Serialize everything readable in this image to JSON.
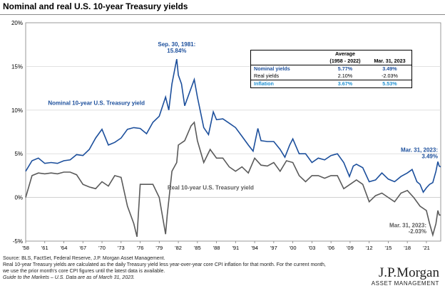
{
  "title": "Nominal and real U.S. 10-year Treasury yields",
  "colors": {
    "nominal": "#1c4f9c",
    "real": "#5a5a5a",
    "inflation": "#1f8fd0",
    "grid": "#d9d9d9",
    "zero": "#c0c0c0"
  },
  "stats_table": {
    "header_avg_line1": "Average",
    "header_avg_line2": "(1958 - 2022)",
    "header_last": "Mar. 31, 2023",
    "rows": [
      {
        "label": "Nominal yields",
        "avg": "5.77%",
        "last": "3.49%",
        "color": "#1c4f9c"
      },
      {
        "label": "Real yields",
        "avg": "2.10%",
        "last": "-2.03%",
        "color": "#000000"
      },
      {
        "label": "Inflation",
        "avg": "3.67%",
        "last": "5.53%",
        "color": "#1f8fd0"
      }
    ]
  },
  "annotations": {
    "peak_line1": "Sep. 30, 1981:",
    "peak_line2": "15.84%",
    "nominal_series_label": "Nominal 10-year U.S. Treasury yield",
    "real_series_label": "Real 10-year U.S. Treasury yield",
    "nominal_end_line1": "Mar. 31, 2023:",
    "nominal_end_line2": "3.49%",
    "real_end_line1": "Mar. 31, 2023:",
    "real_end_line2": "-2.03%"
  },
  "footer": {
    "line1": "Source: BLS, FactSet, Federal Reserve, J.P. Morgan Asset Management.",
    "line2": "Real 10-year Treasury yields are calculated as the daily Treasury yield less year-over-year core CPI inflation for that month. For the current month,",
    "line3": "we use the prior month's core CPI figures until the latest data is available.",
    "line4": "Guide to the Markets – U.S. Data are as of March 31, 2023."
  },
  "logo": {
    "brand": "J.P.Morgan",
    "sub": "ASSET MANAGEMENT"
  },
  "chart_data": {
    "type": "line",
    "title": "Nominal and real U.S. 10-year Treasury yields",
    "xlabel": "",
    "ylabel": "",
    "xlim": [
      1958,
      2023.25
    ],
    "ylim": [
      -5,
      20
    ],
    "y_ticks": [
      -5,
      0,
      5,
      10,
      15,
      20
    ],
    "y_tick_labels": [
      "-5%",
      "0%",
      "5%",
      "10%",
      "15%",
      "20%"
    ],
    "x_ticks": [
      1958,
      1961,
      1964,
      1967,
      1970,
      1973,
      1976,
      1979,
      1982,
      1985,
      1988,
      1991,
      1994,
      1997,
      2000,
      2003,
      2006,
      2009,
      2012,
      2015,
      2018,
      2021
    ],
    "x_tick_labels": [
      "'58",
      "'61",
      "'64",
      "'67",
      "'70",
      "'73",
      "'76",
      "'79",
      "'82",
      "'85",
      "'88",
      "'91",
      "'94",
      "'97",
      "'00",
      "'03",
      "'06",
      "'09",
      "'12",
      "'15",
      "'18",
      "'21"
    ],
    "grid": "horizontal",
    "series": [
      {
        "name": "Nominal 10-year U.S. Treasury yield",
        "points": [
          [
            1958.0,
            3.0
          ],
          [
            1959.0,
            4.2
          ],
          [
            1960.0,
            4.5
          ],
          [
            1961.0,
            3.9
          ],
          [
            1962.0,
            4.0
          ],
          [
            1963.0,
            3.9
          ],
          [
            1964.0,
            4.2
          ],
          [
            1965.0,
            4.3
          ],
          [
            1966.0,
            4.9
          ],
          [
            1967.0,
            4.8
          ],
          [
            1968.0,
            5.5
          ],
          [
            1969.0,
            6.8
          ],
          [
            1970.0,
            7.8
          ],
          [
            1971.0,
            6.0
          ],
          [
            1972.0,
            6.3
          ],
          [
            1973.0,
            6.8
          ],
          [
            1974.0,
            7.8
          ],
          [
            1975.0,
            8.0
          ],
          [
            1976.0,
            7.9
          ],
          [
            1977.0,
            7.3
          ],
          [
            1978.0,
            8.6
          ],
          [
            1979.0,
            9.3
          ],
          [
            1980.0,
            11.5
          ],
          [
            1980.5,
            10.0
          ],
          [
            1981.0,
            13.0
          ],
          [
            1981.75,
            15.84
          ],
          [
            1982.0,
            14.0
          ],
          [
            1982.5,
            13.0
          ],
          [
            1983.0,
            10.5
          ],
          [
            1984.0,
            12.5
          ],
          [
            1984.5,
            13.5
          ],
          [
            1985.0,
            11.5
          ],
          [
            1986.0,
            8.0
          ],
          [
            1986.75,
            7.2
          ],
          [
            1987.5,
            9.8
          ],
          [
            1988.0,
            8.9
          ],
          [
            1989.0,
            9.0
          ],
          [
            1990.0,
            8.5
          ],
          [
            1991.0,
            8.0
          ],
          [
            1992.0,
            7.0
          ],
          [
            1993.0,
            6.0
          ],
          [
            1993.75,
            5.3
          ],
          [
            1994.5,
            7.9
          ],
          [
            1995.0,
            6.5
          ],
          [
            1996.0,
            6.4
          ],
          [
            1997.0,
            6.4
          ],
          [
            1998.0,
            5.5
          ],
          [
            1998.75,
            4.6
          ],
          [
            1999.5,
            6.0
          ],
          [
            2000.0,
            6.7
          ],
          [
            2001.0,
            5.0
          ],
          [
            2002.0,
            5.0
          ],
          [
            2003.0,
            4.0
          ],
          [
            2004.0,
            4.5
          ],
          [
            2005.0,
            4.3
          ],
          [
            2006.0,
            4.8
          ],
          [
            2007.0,
            5.0
          ],
          [
            2008.0,
            4.0
          ],
          [
            2008.9,
            2.4
          ],
          [
            2009.5,
            3.6
          ],
          [
            2010.0,
            3.8
          ],
          [
            2011.0,
            3.4
          ],
          [
            2012.0,
            1.8
          ],
          [
            2013.0,
            2.0
          ],
          [
            2014.0,
            2.8
          ],
          [
            2015.0,
            2.1
          ],
          [
            2016.0,
            1.8
          ],
          [
            2017.0,
            2.4
          ],
          [
            2018.0,
            2.8
          ],
          [
            2018.75,
            3.2
          ],
          [
            2019.5,
            1.8
          ],
          [
            2020.0,
            1.5
          ],
          [
            2020.5,
            0.6
          ],
          [
            2021.0,
            1.1
          ],
          [
            2021.5,
            1.5
          ],
          [
            2022.0,
            1.7
          ],
          [
            2022.5,
            3.0
          ],
          [
            2022.8,
            4.1
          ],
          [
            2023.0,
            3.6
          ],
          [
            2023.25,
            3.49
          ]
        ]
      },
      {
        "name": "Real 10-year U.S. Treasury yield",
        "points": [
          [
            1958.0,
            0.0
          ],
          [
            1959.0,
            2.5
          ],
          [
            1960.0,
            2.8
          ],
          [
            1961.0,
            2.7
          ],
          [
            1962.0,
            2.8
          ],
          [
            1963.0,
            2.7
          ],
          [
            1964.0,
            2.9
          ],
          [
            1965.0,
            2.9
          ],
          [
            1966.0,
            2.6
          ],
          [
            1967.0,
            1.5
          ],
          [
            1968.0,
            1.2
          ],
          [
            1969.0,
            1.0
          ],
          [
            1970.0,
            1.8
          ],
          [
            1971.0,
            1.3
          ],
          [
            1972.0,
            2.5
          ],
          [
            1973.0,
            2.3
          ],
          [
            1974.0,
            -1.0
          ],
          [
            1975.0,
            -3.0
          ],
          [
            1975.5,
            -4.5
          ],
          [
            1976.0,
            1.5
          ],
          [
            1977.0,
            1.5
          ],
          [
            1978.0,
            1.5
          ],
          [
            1979.0,
            0.0
          ],
          [
            1980.0,
            -4.2
          ],
          [
            1980.25,
            -2.0
          ],
          [
            1981.0,
            3.0
          ],
          [
            1981.75,
            4.0
          ],
          [
            1982.0,
            6.0
          ],
          [
            1983.0,
            6.5
          ],
          [
            1984.0,
            8.2
          ],
          [
            1984.5,
            8.6
          ],
          [
            1985.0,
            6.5
          ],
          [
            1986.0,
            4.0
          ],
          [
            1987.0,
            5.5
          ],
          [
            1988.0,
            4.5
          ],
          [
            1989.0,
            4.5
          ],
          [
            1990.0,
            3.5
          ],
          [
            1991.0,
            3.0
          ],
          [
            1992.0,
            3.5
          ],
          [
            1993.0,
            2.8
          ],
          [
            1994.0,
            4.5
          ],
          [
            1995.0,
            3.7
          ],
          [
            1996.0,
            3.6
          ],
          [
            1997.0,
            4.0
          ],
          [
            1998.0,
            3.0
          ],
          [
            1999.0,
            4.2
          ],
          [
            2000.0,
            4.0
          ],
          [
            2001.0,
            2.5
          ],
          [
            2002.0,
            1.8
          ],
          [
            2003.0,
            2.5
          ],
          [
            2004.0,
            2.5
          ],
          [
            2005.0,
            2.2
          ],
          [
            2006.0,
            2.5
          ],
          [
            2007.0,
            2.5
          ],
          [
            2008.0,
            1.0
          ],
          [
            2009.0,
            1.5
          ],
          [
            2010.0,
            2.0
          ],
          [
            2011.0,
            1.5
          ],
          [
            2012.0,
            -0.5
          ],
          [
            2013.0,
            0.2
          ],
          [
            2014.0,
            0.5
          ],
          [
            2015.0,
            0.0
          ],
          [
            2016.0,
            -0.5
          ],
          [
            2017.0,
            0.5
          ],
          [
            2018.0,
            0.8
          ],
          [
            2019.0,
            0.0
          ],
          [
            2020.0,
            -1.0
          ],
          [
            2021.0,
            -1.5
          ],
          [
            2021.5,
            -3.0
          ],
          [
            2022.0,
            -4.3
          ],
          [
            2022.5,
            -3.0
          ],
          [
            2022.8,
            -1.5
          ],
          [
            2023.0,
            -2.0
          ],
          [
            2023.25,
            -2.03
          ]
        ]
      }
    ]
  }
}
